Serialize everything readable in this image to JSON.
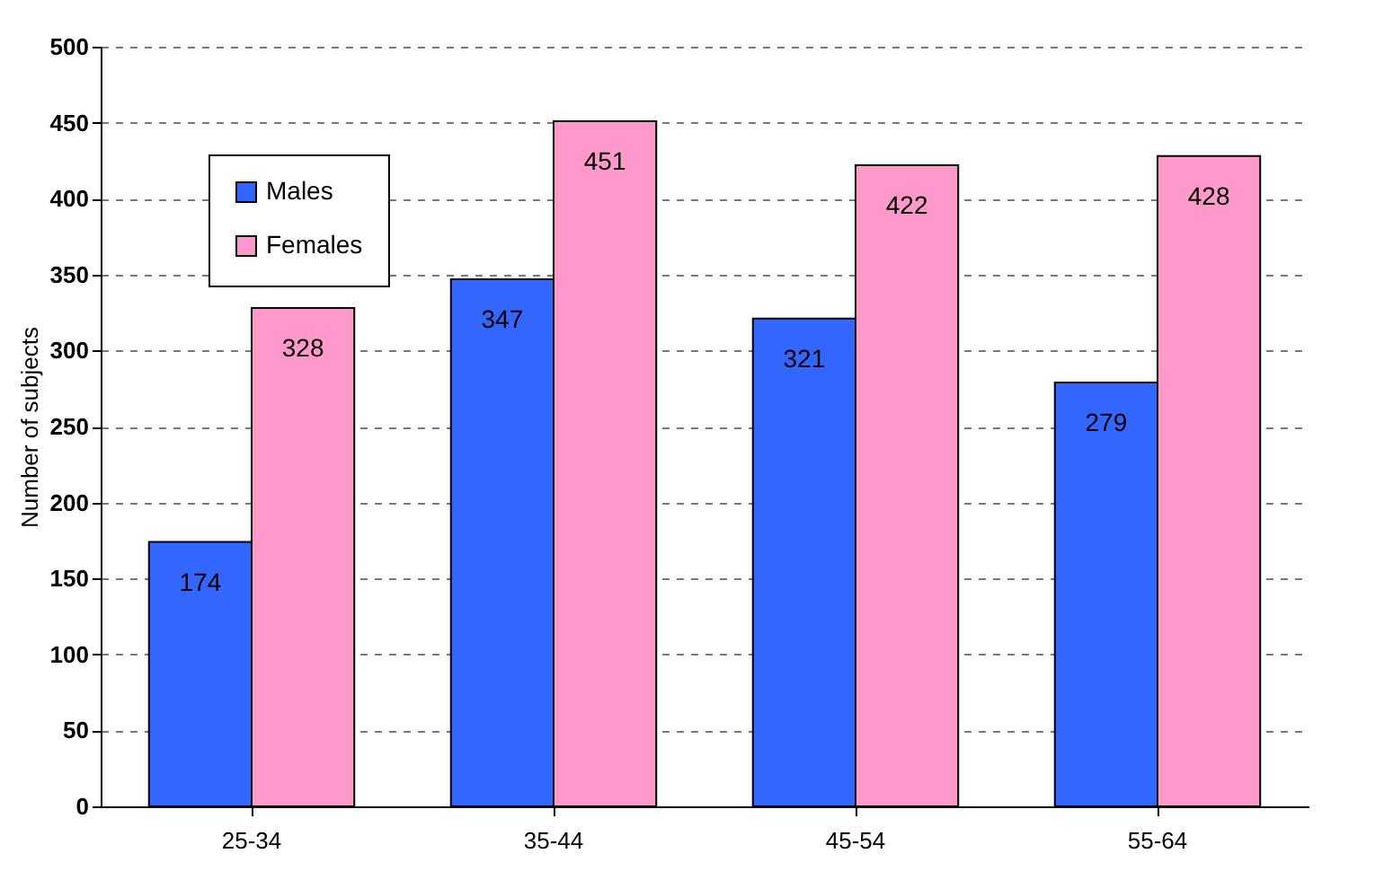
{
  "chart_data": {
    "type": "bar",
    "ylabel": "Number of subjects",
    "categories": [
      "25-34",
      "35-44",
      "45-54",
      "55-64"
    ],
    "series": [
      {
        "name": "Males",
        "color": "#3366ff",
        "values": [
          174,
          347,
          321,
          279
        ]
      },
      {
        "name": "Females",
        "color": "#ff99cc",
        "values": [
          328,
          451,
          422,
          428
        ]
      }
    ],
    "ylim": [
      0,
      500
    ],
    "yticks": [
      0,
      50,
      100,
      150,
      200,
      250,
      300,
      350,
      400,
      450,
      500
    ],
    "grid": "y",
    "legend": "top left",
    "data_labels": true
  }
}
